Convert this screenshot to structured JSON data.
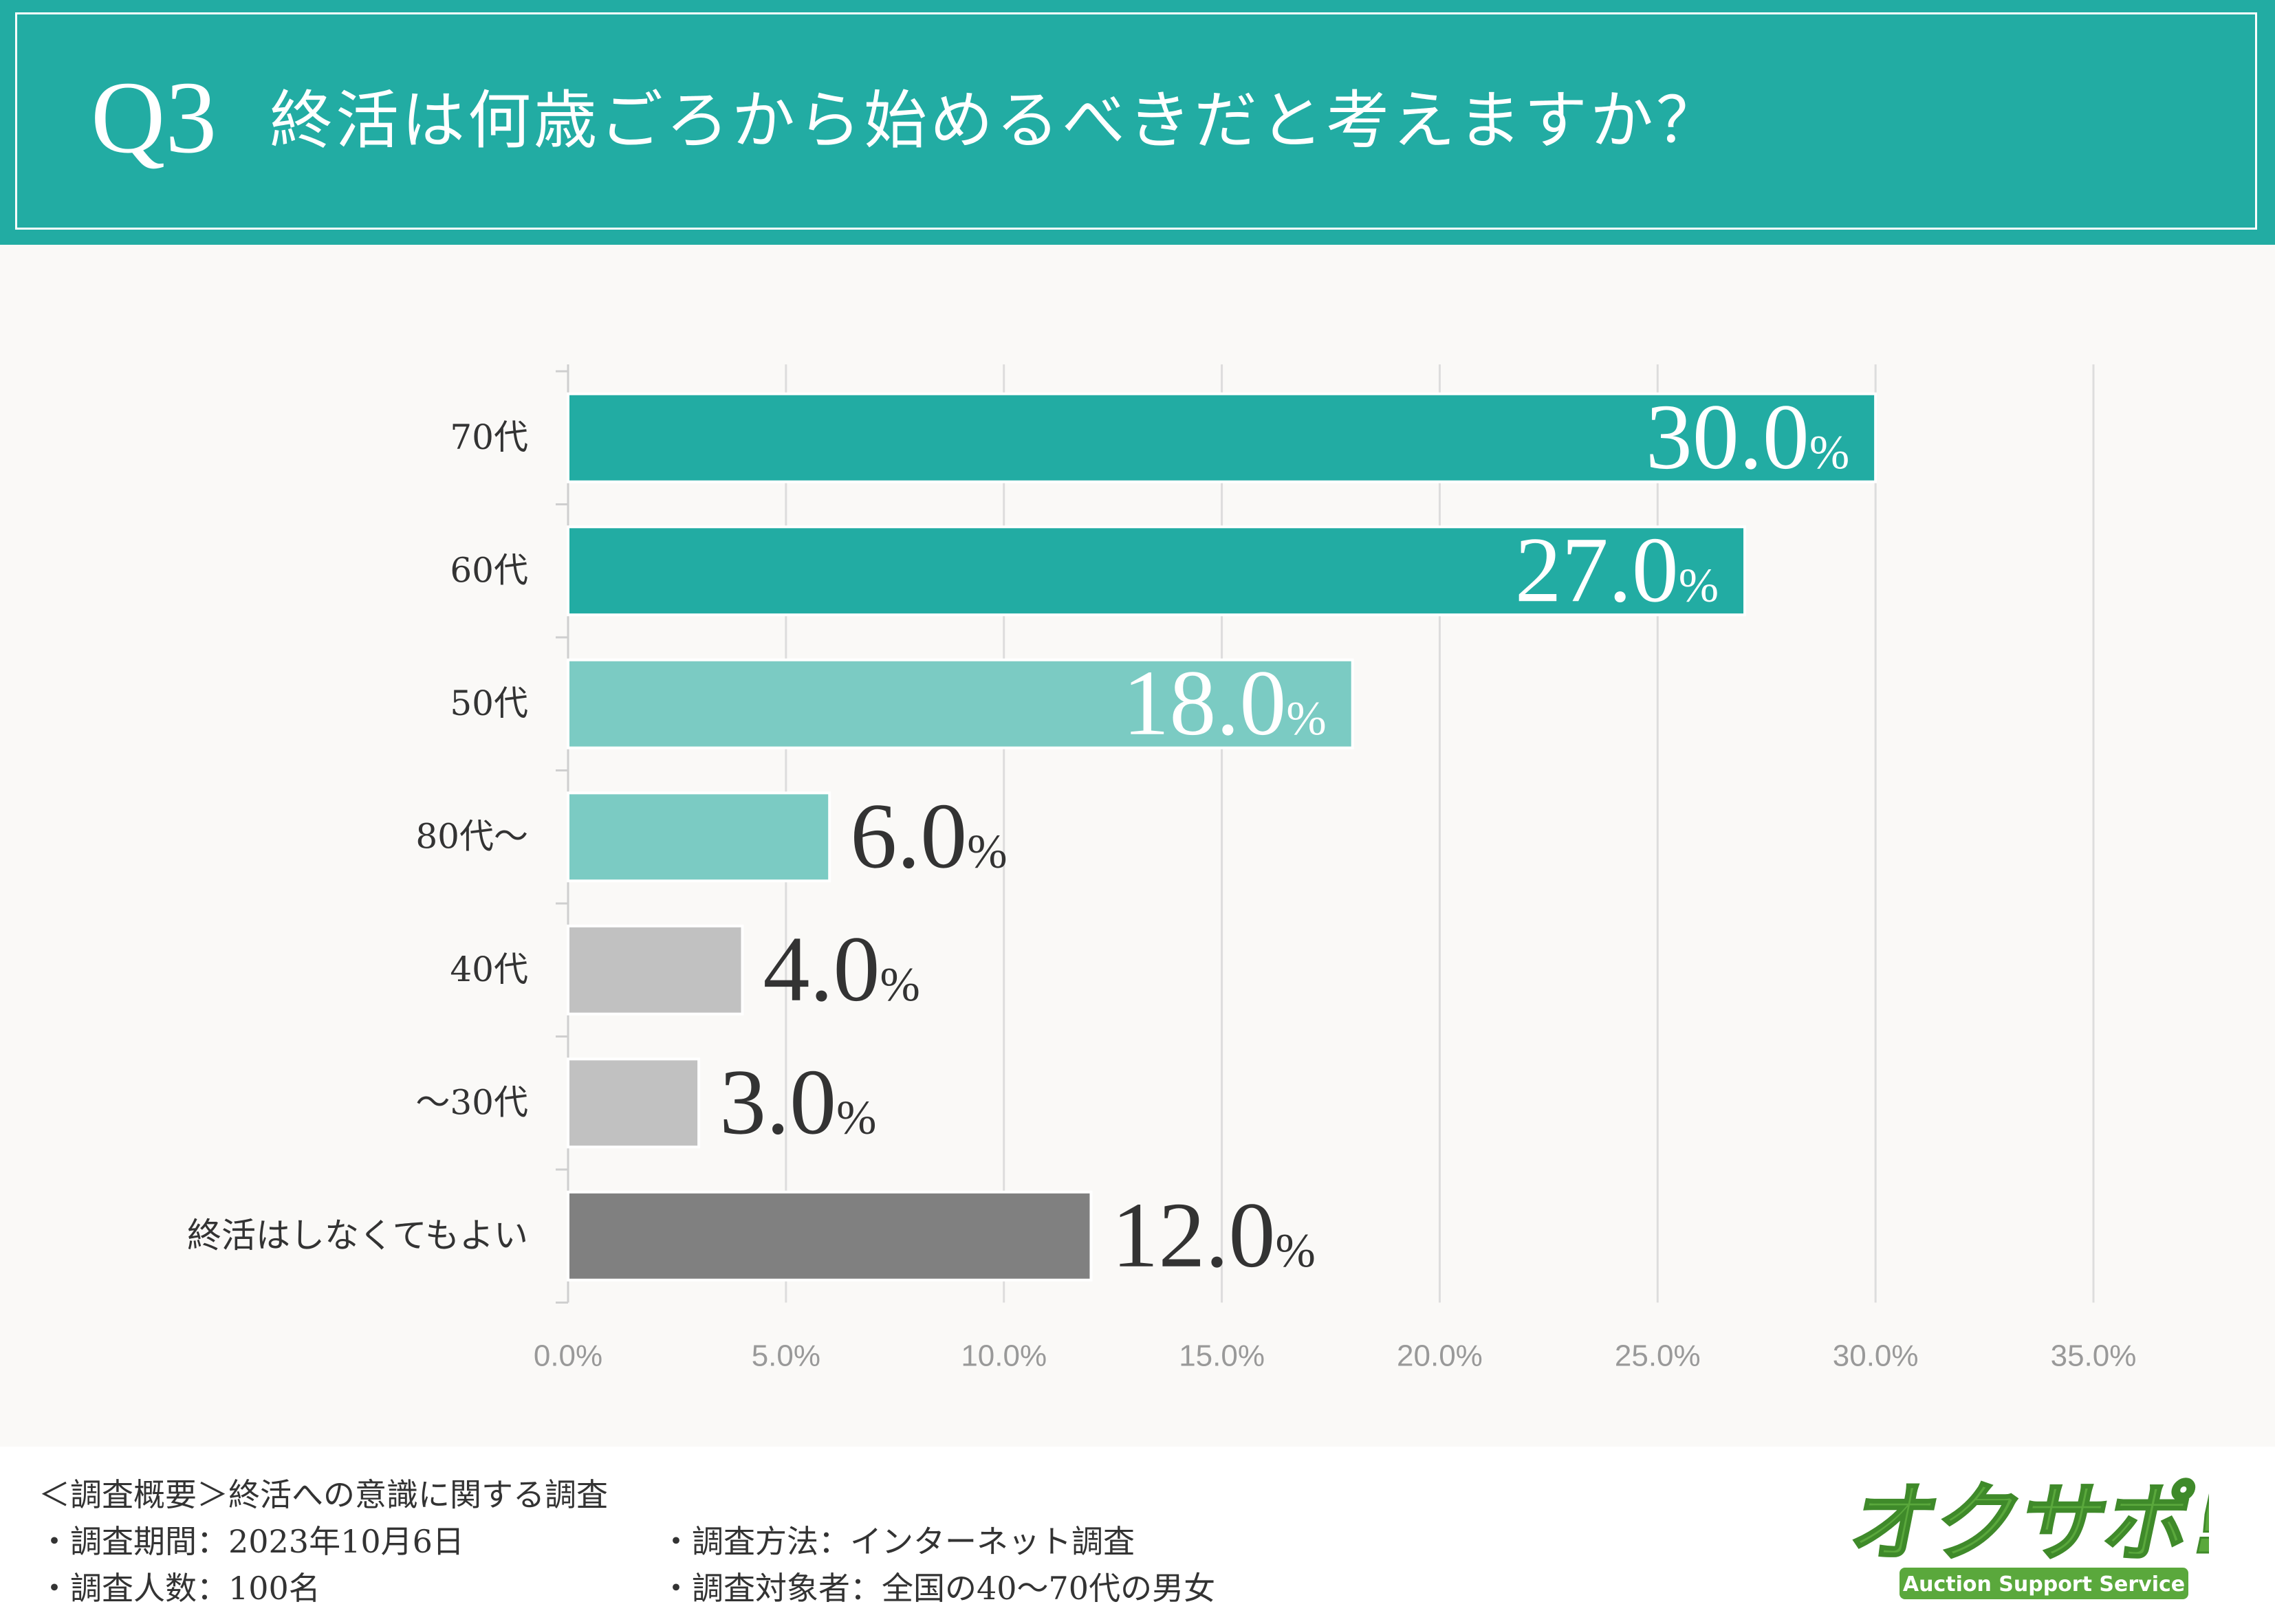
{
  "header": {
    "q_number": "Q3",
    "title": "終活は何歳ごろから始めるべきだと考えますか？"
  },
  "chart_data": {
    "type": "bar",
    "orientation": "horizontal",
    "categories": [
      "70代",
      "60代",
      "50代",
      "80代〜",
      "40代",
      "〜30代",
      "終活はしなくてもよい"
    ],
    "values": [
      30.0,
      27.0,
      18.0,
      6.0,
      4.0,
      3.0,
      12.0
    ],
    "value_suffix": "%",
    "bar_colors": [
      "#22aca3",
      "#22aca3",
      "#7bcbc3",
      "#7bcbc3",
      "#c1c1c1",
      "#c1c1c1",
      "#808080"
    ],
    "label_inside": [
      true,
      true,
      true,
      false,
      false,
      false,
      false
    ],
    "xlim": [
      0,
      35
    ],
    "x_ticks": [
      "0.0%",
      "5.0%",
      "10.0%",
      "15.0%",
      "20.0%",
      "25.0%",
      "30.0%",
      "35.0%"
    ],
    "grid": true,
    "title": "",
    "xlabel": "",
    "ylabel": ""
  },
  "footer": {
    "summary": "＜調査概要＞終活への意識に関する調査",
    "period": "・調査期間：2023年10月6日",
    "method": "・調査方法：インターネット調査",
    "count": "・調査人数：100名",
    "target": "・調査対象者：全国の40〜70代の男女"
  },
  "logo": {
    "text": "オクサポ!",
    "subtext": "Auction Support Service",
    "color": "#5aa83c"
  },
  "colors": {
    "accent": "#22aca3",
    "background": "#faf9f7"
  }
}
